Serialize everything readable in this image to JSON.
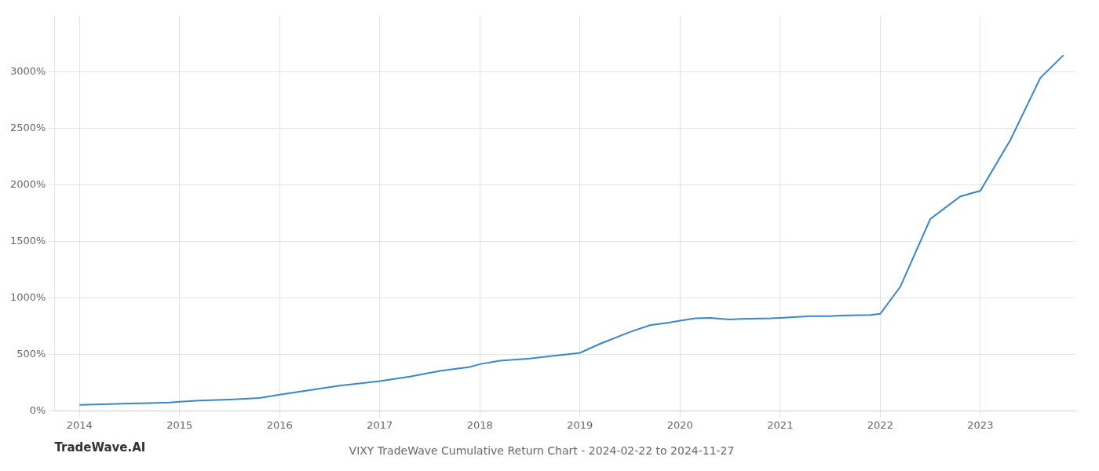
{
  "chart_data": {
    "type": "line",
    "title": "VIXY TradeWave Cumulative Return Chart - 2024-02-22 to 2024-11-27",
    "annotations": [
      "TradeWave.AI"
    ],
    "x": [
      2014.0,
      2014.15,
      2014.3,
      2014.5,
      2014.7,
      2014.9,
      2015.0,
      2015.2,
      2015.5,
      2015.8,
      2016.0,
      2016.3,
      2016.6,
      2016.9,
      2017.0,
      2017.3,
      2017.6,
      2017.9,
      2018.0,
      2018.2,
      2018.5,
      2018.7,
      2018.9,
      2019.0,
      2019.2,
      2019.5,
      2019.7,
      2019.9,
      2020.0,
      2020.15,
      2020.3,
      2020.5,
      2020.6,
      2020.9,
      2021.0,
      2021.3,
      2021.5,
      2021.6,
      2021.9,
      2022.0,
      2022.2,
      2022.5,
      2022.8,
      2023.0,
      2023.3,
      2023.6,
      2023.83
    ],
    "values": [
      55,
      58,
      62,
      66,
      70,
      75,
      82,
      92,
      102,
      115,
      145,
      185,
      225,
      255,
      265,
      305,
      355,
      390,
      415,
      445,
      465,
      485,
      505,
      515,
      595,
      700,
      760,
      785,
      800,
      820,
      825,
      810,
      815,
      820,
      825,
      840,
      840,
      845,
      850,
      860,
      1100,
      1700,
      1900,
      1950,
      2400,
      2950,
      3150
    ],
    "color": "#3a87c8",
    "xlim": [
      2013.75,
      2023.95
    ],
    "xticks": [
      2014,
      2015,
      2016,
      2017,
      2018,
      2019,
      2020,
      2021,
      2022,
      2023
    ],
    "ylim": [
      0,
      3500
    ],
    "yticks": [
      {
        "value": 0,
        "label": "0%"
      },
      {
        "value": 500,
        "label": "500%"
      },
      {
        "value": 1000,
        "label": "1000%"
      },
      {
        "value": 1500,
        "label": "1500%"
      },
      {
        "value": 2000,
        "label": "2000%"
      },
      {
        "value": 2500,
        "label": "2500%"
      },
      {
        "value": 3000,
        "label": "3000%"
      }
    ],
    "grid": true
  }
}
